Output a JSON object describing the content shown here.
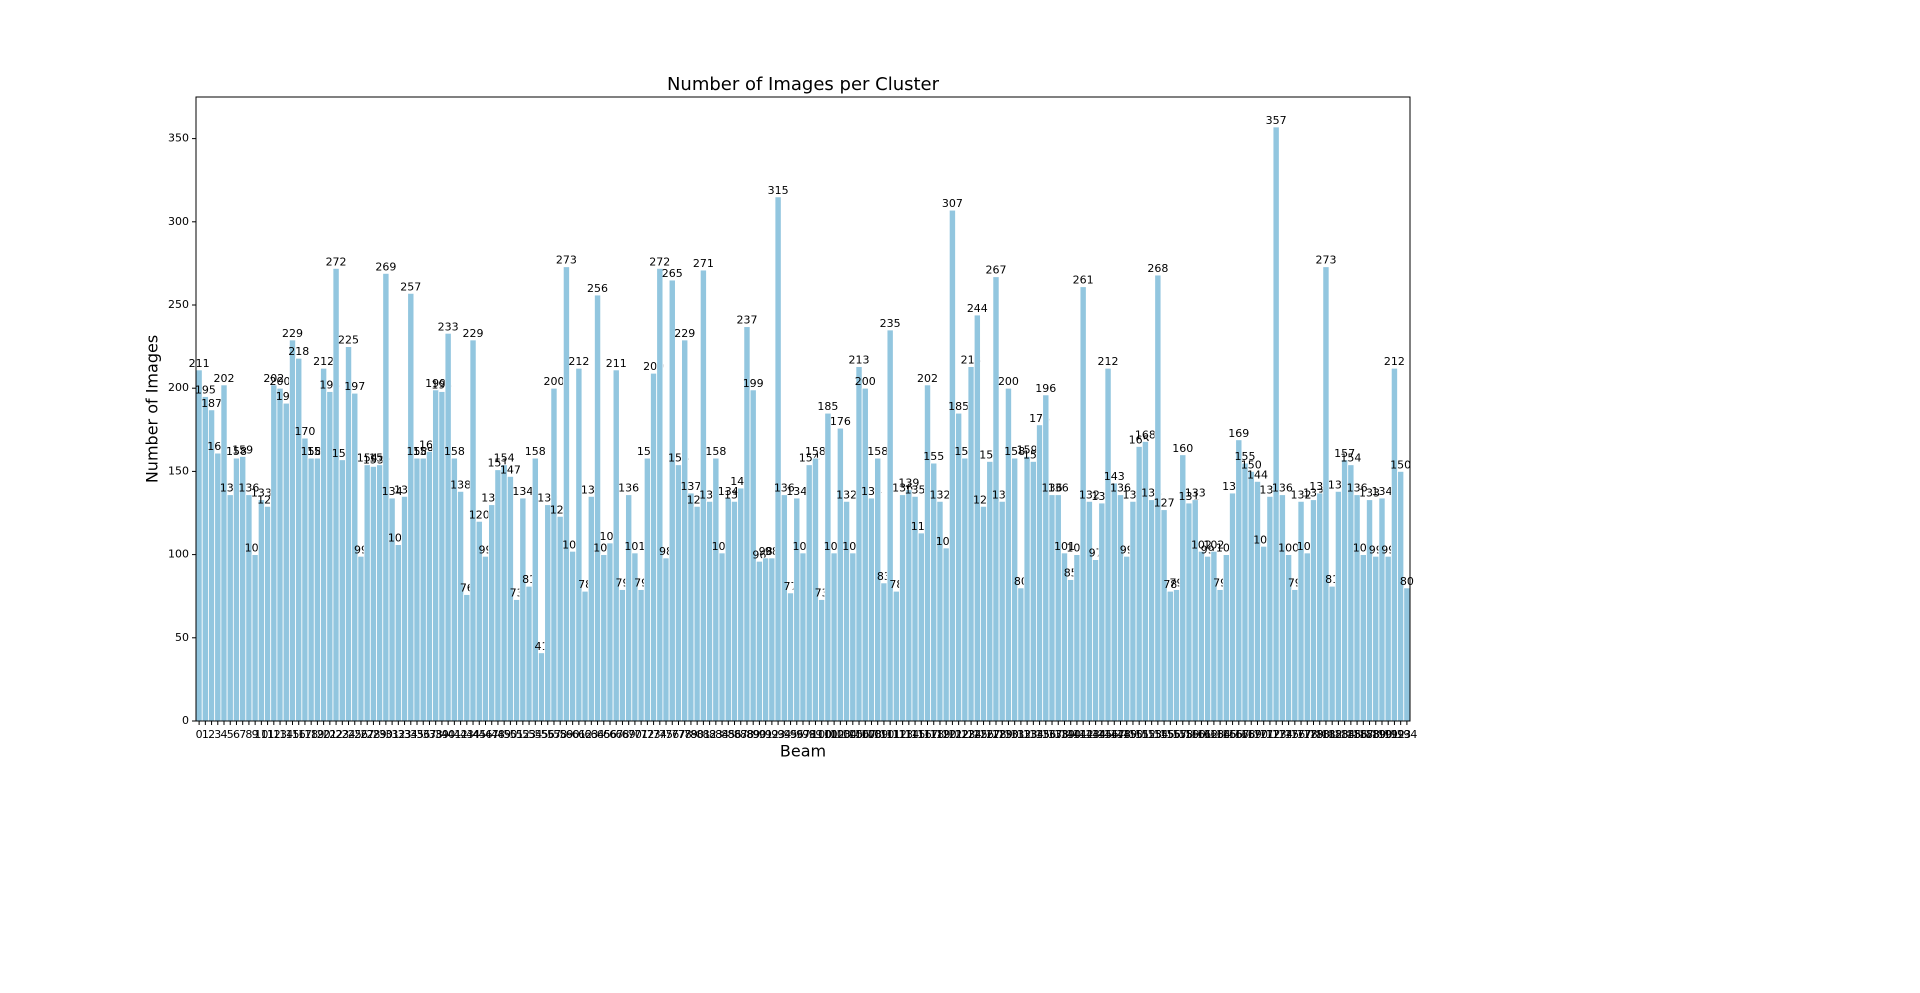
{
  "chart_data": {
    "type": "bar",
    "title": "Number of Images per Cluster",
    "x_label": "Beam",
    "y_label": "Number of Images",
    "color": "#92c6df",
    "categories": [
      0,
      1,
      2,
      3,
      4,
      5,
      6,
      7,
      8,
      9,
      10,
      11,
      12,
      13,
      14,
      15,
      16,
      17,
      18,
      19,
      20,
      21,
      22,
      23,
      24,
      25,
      26,
      27,
      28,
      29,
      30,
      31,
      32,
      33,
      34,
      35,
      36,
      37,
      38,
      39,
      40,
      41,
      42,
      43,
      44,
      45,
      46,
      47,
      48,
      49,
      50,
      51,
      52,
      53,
      54,
      55,
      56,
      57,
      58,
      59,
      60,
      61,
      62,
      63,
      64,
      65,
      66,
      67,
      68,
      69,
      70,
      71,
      72,
      73,
      74,
      75,
      76,
      77,
      78,
      79,
      80,
      81,
      82,
      83,
      84,
      85,
      86,
      87,
      88,
      89,
      90,
      91,
      92,
      93,
      94,
      95,
      96,
      97,
      98,
      99,
      100,
      101,
      102,
      103,
      104,
      105,
      106,
      107,
      108,
      109,
      110,
      111,
      112,
      113,
      114,
      115,
      116,
      117,
      118,
      119,
      120,
      121,
      122,
      123,
      124,
      125,
      126,
      127,
      128,
      129,
      130,
      131,
      132,
      133,
      134,
      135,
      136,
      137,
      138,
      139,
      140,
      141,
      142,
      143,
      144,
      145,
      146,
      147,
      148,
      149,
      150,
      151,
      152,
      153,
      154,
      155,
      156,
      157,
      158,
      159,
      160,
      161,
      162,
      163,
      164,
      165,
      166,
      167,
      168,
      169,
      170,
      171,
      172,
      173,
      174,
      175,
      176,
      177,
      178,
      179,
      180,
      181,
      182,
      183,
      184,
      185,
      186,
      187,
      188,
      189,
      190,
      191,
      192,
      193,
      194
    ],
    "values": [
      211,
      195,
      187,
      161,
      202,
      136,
      158,
      159,
      136,
      100,
      133,
      129,
      202,
      200,
      191,
      229,
      218,
      170,
      158,
      158,
      212,
      198,
      272,
      157,
      225,
      197,
      99,
      154,
      153,
      154,
      269,
      134,
      106,
      135,
      257,
      158,
      158,
      162,
      199,
      198,
      233,
      158,
      138,
      76,
      229,
      120,
      99,
      130,
      151,
      154,
      147,
      73,
      134,
      81,
      158,
      41,
      130,
      200,
      123,
      273,
      102,
      212,
      78,
      135,
      256,
      100,
      107,
      211,
      79,
      136,
      101,
      79,
      158,
      209,
      272,
      98,
      265,
      154,
      229,
      137,
      129,
      271,
      132,
      158,
      101,
      134,
      132,
      140,
      237,
      199,
      96,
      98,
      98,
      315,
      136,
      77,
      134,
      101,
      154,
      158,
      73,
      185,
      101,
      176,
      132,
      101,
      213,
      200,
      134,
      158,
      83,
      235,
      78,
      136,
      139,
      135,
      113,
      202,
      155,
      132,
      104,
      307,
      185,
      158,
      213,
      244,
      129,
      156,
      267,
      132,
      200,
      158,
      80,
      159,
      156,
      178,
      196,
      136,
      136,
      101,
      85,
      100,
      261,
      132,
      97,
      131,
      212,
      143,
      136,
      99,
      132,
      165,
      168,
      133,
      268,
      127,
      78,
      79,
      160,
      131,
      133,
      102,
      99,
      102,
      79,
      100,
      137,
      169,
      155,
      150,
      144,
      105,
      135,
      357,
      136,
      100,
      79,
      132,
      101,
      133,
      137,
      273,
      81,
      138,
      157,
      154,
      136,
      100,
      133,
      99,
      134,
      99,
      212,
      150,
      80
    ],
    "ylim": [
      0,
      375
    ],
    "yticks": [
      0,
      50,
      100,
      150,
      200,
      250,
      300,
      350
    ],
    "grid": false
  }
}
